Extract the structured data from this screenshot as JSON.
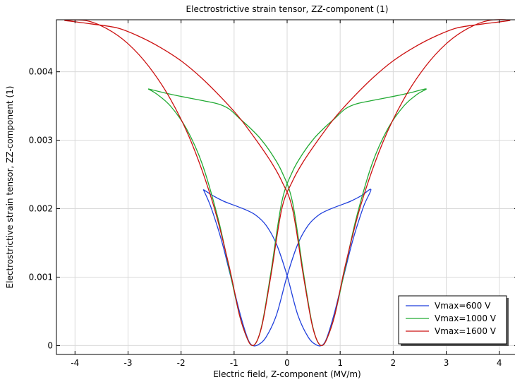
{
  "chart_data": {
    "type": "line",
    "title": "Electrostrictive strain tensor, ZZ-component (1)",
    "xlabel": "Electric field, Z-component (MV/m)",
    "ylabel": "Electrostrictive strain tensor, ZZ-component (1)",
    "xlim": [
      -4.35,
      4.35
    ],
    "ylim": [
      -0.00013,
      0.00476
    ],
    "xticks": [
      -4,
      -3,
      -2,
      -1,
      0,
      1,
      2,
      3,
      4
    ],
    "xtick_labels": [
      "-4",
      "-3",
      "-2",
      "-1",
      "0",
      "1",
      "2",
      "3",
      "4"
    ],
    "yticks": [
      0,
      0.001,
      0.002,
      0.003,
      0.004
    ],
    "ytick_labels": [
      "0",
      "0.001",
      "0.002",
      "0.003",
      "0.004"
    ],
    "grid": true,
    "legend_position": "bottom-right",
    "series": [
      {
        "name": "Vmax=600 V",
        "color": "#1f3fdc",
        "x": [
          -1.58,
          -1.4,
          -1.2,
          -1.0,
          -0.8,
          -0.6,
          -0.4,
          -0.2,
          0.0,
          0.2,
          0.4,
          0.55,
          0.65,
          0.72,
          0.8,
          0.9,
          1.0,
          1.1,
          1.2,
          1.3,
          1.45,
          1.58,
          1.4,
          1.2,
          1.0,
          0.8,
          0.6,
          0.4,
          0.2,
          0.0,
          -0.2,
          -0.4,
          -0.55,
          -0.65,
          -0.72,
          -0.8,
          -0.9,
          -1.0,
          -1.1,
          -1.2,
          -1.3,
          -1.45,
          -1.58
        ],
        "y": [
          0.00228,
          0.00219,
          0.00211,
          0.00205,
          0.00199,
          0.00191,
          0.00176,
          0.00148,
          0.00102,
          0.00045,
          0.00012,
          1e-05,
          0.0,
          6e-05,
          0.00023,
          0.0005,
          0.00081,
          0.00112,
          0.00143,
          0.0017,
          0.00205,
          0.00228,
          0.00219,
          0.00211,
          0.00205,
          0.00199,
          0.00191,
          0.00176,
          0.00148,
          0.00102,
          0.00045,
          0.00012,
          1e-05,
          0.0,
          6e-05,
          0.00023,
          0.0005,
          0.00081,
          0.00112,
          0.00143,
          0.0017,
          0.00205,
          0.00228
        ]
      },
      {
        "name": "Vmax=1000 V",
        "color": "#22aa33",
        "x": [
          -2.62,
          -2.3,
          -2.0,
          -1.6,
          -1.3,
          -1.1,
          -0.9,
          -0.7,
          -0.5,
          -0.3,
          -0.1,
          0.1,
          0.3,
          0.45,
          0.55,
          0.65,
          0.75,
          0.9,
          1.1,
          1.3,
          1.6,
          1.9,
          2.2,
          2.45,
          2.62,
          2.3,
          2.0,
          1.6,
          1.3,
          1.1,
          0.9,
          0.7,
          0.5,
          0.3,
          0.1,
          -0.1,
          -0.3,
          -0.45,
          -0.55,
          -0.65,
          -0.75,
          -0.9,
          -1.1,
          -1.3,
          -1.6,
          -1.9,
          -2.2,
          -2.45,
          -2.62
        ],
        "y": [
          0.00375,
          0.00369,
          0.00364,
          0.00358,
          0.00353,
          0.00346,
          0.00332,
          0.00318,
          0.00302,
          0.00281,
          0.00254,
          0.0021,
          0.0011,
          0.0004,
          0.0001,
          0.0,
          0.0001,
          0.00045,
          0.00115,
          0.00185,
          0.00265,
          0.00317,
          0.0035,
          0.00367,
          0.00375,
          0.00369,
          0.00364,
          0.00358,
          0.00353,
          0.00346,
          0.00332,
          0.00318,
          0.00302,
          0.00281,
          0.00254,
          0.0021,
          0.0011,
          0.0004,
          0.0001,
          0.0,
          0.0001,
          0.00045,
          0.00115,
          0.00185,
          0.00265,
          0.00317,
          0.0035,
          0.00367,
          0.00375
        ]
      },
      {
        "name": "Vmax=1600 V",
        "color": "#cc1111",
        "x": [
          -4.2,
          -3.7,
          -3.2,
          -2.8,
          -2.4,
          -2.0,
          -1.6,
          -1.2,
          -0.9,
          -0.6,
          -0.3,
          -0.1,
          0.1,
          0.3,
          0.45,
          0.55,
          0.65,
          0.75,
          0.9,
          1.1,
          1.4,
          1.8,
          2.2,
          2.6,
          3.0,
          3.4,
          3.8,
          4.2,
          3.7,
          3.2,
          2.8,
          2.4,
          2.0,
          1.6,
          1.2,
          0.9,
          0.6,
          0.3,
          0.1,
          -0.1,
          -0.3,
          -0.45,
          -0.55,
          -0.65,
          -0.75,
          -0.9,
          -1.1,
          -1.4,
          -1.8,
          -2.2,
          -2.6,
          -3.0,
          -3.4,
          -3.8,
          -4.2
        ],
        "y": [
          0.00475,
          0.0047,
          0.00464,
          0.00452,
          0.00436,
          0.00416,
          0.0039,
          0.00359,
          0.00333,
          0.00302,
          0.00268,
          0.0024,
          0.002,
          0.00105,
          0.00038,
          0.0001,
          0.0,
          0.0001,
          0.00045,
          0.00118,
          0.00208,
          0.00296,
          0.0036,
          0.00407,
          0.00441,
          0.00463,
          0.00475,
          0.00475,
          0.0047,
          0.00464,
          0.00452,
          0.00436,
          0.00416,
          0.0039,
          0.00359,
          0.00333,
          0.00302,
          0.00268,
          0.0024,
          0.002,
          0.00105,
          0.00038,
          0.0001,
          0.0,
          0.0001,
          0.00045,
          0.00118,
          0.00208,
          0.00296,
          0.0036,
          0.00407,
          0.00441,
          0.00463,
          0.00475,
          0.00475
        ]
      }
    ]
  }
}
